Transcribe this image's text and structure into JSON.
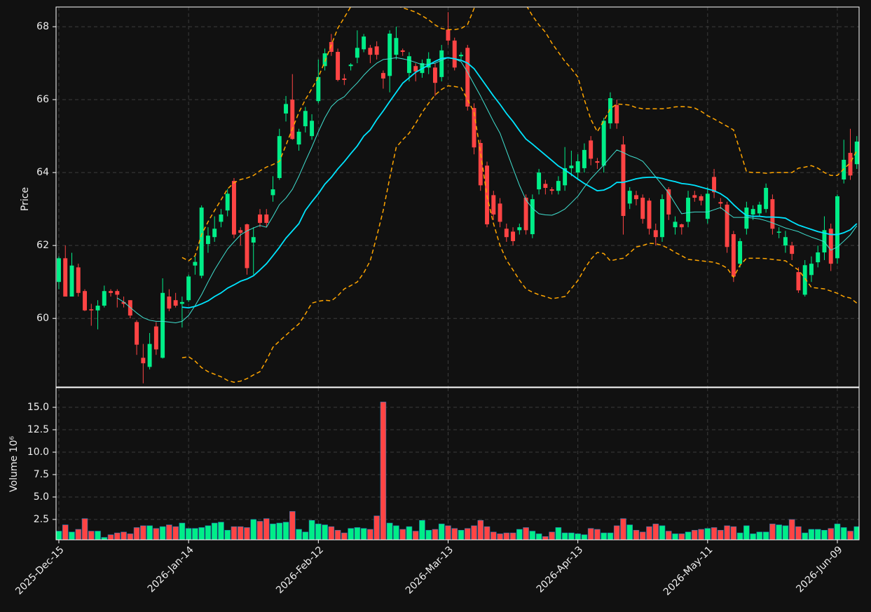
{
  "chart_data": {
    "type": "candlestick",
    "ylabel": "Price",
    "volume_label": "Volume  10⁶",
    "up_color": "#00ee88",
    "down_color": "#ff4444",
    "grid": true,
    "categories": [
      "2025-Dec-15",
      null,
      null,
      null,
      null,
      null,
      null,
      null,
      null,
      null,
      null,
      null,
      null,
      null,
      null,
      null,
      null,
      null,
      null,
      null,
      "2026-Jan-14",
      null,
      null,
      null,
      null,
      null,
      null,
      null,
      null,
      null,
      null,
      null,
      null,
      null,
      null,
      null,
      null,
      null,
      null,
      null,
      "2026-Feb-12",
      null,
      null,
      null,
      null,
      null,
      null,
      null,
      null,
      null,
      null,
      null,
      null,
      null,
      null,
      null,
      null,
      null,
      null,
      null,
      "2026-Mar-13",
      null,
      null,
      null,
      null,
      null,
      null,
      null,
      null,
      null,
      null,
      null,
      null,
      null,
      null,
      null,
      null,
      null,
      null,
      null,
      "2026-Apr-13",
      null,
      null,
      null,
      null,
      null,
      null,
      null,
      null,
      null,
      null,
      null,
      null,
      null,
      null,
      null,
      null,
      null,
      null,
      null,
      "2026-May-11",
      null,
      null,
      null,
      null,
      null,
      null,
      null,
      null,
      null,
      null,
      null,
      null,
      null,
      null,
      null,
      null,
      null,
      null,
      null,
      "2026-Jun-09",
      null,
      null,
      null
    ],
    "open": [
      61.0,
      61.65,
      60.6,
      61.4,
      60.75,
      60.25,
      60.22,
      60.35,
      60.75,
      60.75,
      60.45,
      60.5,
      59.9,
      58.92,
      58.67,
      59.78,
      58.92,
      60.6,
      60.5,
      60.4,
      60.5,
      61.45,
      61.17,
      62.04,
      62.23,
      62.65,
      62.96,
      63.77,
      62.42,
      62.58,
      62.08,
      62.85,
      62.85,
      63.38,
      63.85,
      65.62,
      66.0,
      64.77,
      65.27,
      65.0,
      65.96,
      66.92,
      67.58,
      67.31,
      66.58,
      66.92,
      67.15,
      67.38,
      67.42,
      67.46,
      66.73,
      66.65,
      67.23,
      67.35,
      66.73,
      66.92,
      66.73,
      66.88,
      66.88,
      66.62,
      67.92,
      67.62,
      67.19,
      67.42,
      65.77,
      64.81,
      64.19,
      63.38,
      63.15,
      62.46,
      62.38,
      62.42,
      63.31,
      62.31,
      63.54,
      63.69,
      63.54,
      63.5,
      63.65,
      64.12,
      64.0,
      64.12,
      64.88,
      64.31,
      64.19,
      65.35,
      65.85,
      64.77,
      63.15,
      63.38,
      63.31,
      63.23,
      62.42,
      62.23,
      63.54,
      62.5,
      62.58,
      62.65,
      63.38,
      63.35,
      62.73,
      63.88,
      63.19,
      63.12,
      62.31,
      61.5,
      62.46,
      62.85,
      62.88,
      63.0,
      63.27,
      62.35,
      62.0,
      62.0,
      61.27,
      60.65,
      61.19,
      61.54,
      61.81,
      62.46,
      61.65,
      63.81,
      64.54,
      64.23
    ],
    "high": [
      61.7,
      62.0,
      61.8,
      61.5,
      60.8,
      60.4,
      60.5,
      60.9,
      60.8,
      60.8,
      60.6,
      60.5,
      59.95,
      59.3,
      59.6,
      59.9,
      61.1,
      60.8,
      60.7,
      60.6,
      61.2,
      61.7,
      63.1,
      62.5,
      62.8,
      63.0,
      63.55,
      63.85,
      62.5,
      62.6,
      62.5,
      63.0,
      63.0,
      63.9,
      65.2,
      66.1,
      66.7,
      65.2,
      65.8,
      65.6,
      67.1,
      67.4,
      67.8,
      67.4,
      66.7,
      67.0,
      67.9,
      67.8,
      67.5,
      67.6,
      66.8,
      67.9,
      68.0,
      67.4,
      67.3,
      67.0,
      67.1,
      67.3,
      67.0,
      67.5,
      68.4,
      67.7,
      67.3,
      67.5,
      65.9,
      64.9,
      64.3,
      63.5,
      63.3,
      62.6,
      62.5,
      62.6,
      63.4,
      63.4,
      64.1,
      63.8,
      63.6,
      63.9,
      64.7,
      64.6,
      64.5,
      64.8,
      65.0,
      64.4,
      65.5,
      66.2,
      66.0,
      65.0,
      63.6,
      63.5,
      63.4,
      63.3,
      62.6,
      63.4,
      63.6,
      62.8,
      62.6,
      63.5,
      63.5,
      63.4,
      63.6,
      64.1,
      63.3,
      63.2,
      62.4,
      62.2,
      63.2,
      63.1,
      63.2,
      63.7,
      63.4,
      62.5,
      62.4,
      62.1,
      61.4,
      61.6,
      61.7,
      62.0,
      62.8,
      62.6,
      63.4,
      64.9,
      65.2,
      65.0
    ],
    "low": [
      60.8,
      60.6,
      60.6,
      60.6,
      60.2,
      59.8,
      59.7,
      60.3,
      60.6,
      60.3,
      60.3,
      60.0,
      59.0,
      58.22,
      58.6,
      59.0,
      58.9,
      60.2,
      60.3,
      59.75,
      60.45,
      61.2,
      61.1,
      61.8,
      62.1,
      62.5,
      62.8,
      62.2,
      62.0,
      61.2,
      61.2,
      62.5,
      62.5,
      63.2,
      63.8,
      65.4,
      64.9,
      64.6,
      65.1,
      64.9,
      65.9,
      66.8,
      67.2,
      66.5,
      66.4,
      66.8,
      67.0,
      67.3,
      67.0,
      67.1,
      66.3,
      66.2,
      67.1,
      67.2,
      66.5,
      66.5,
      66.6,
      66.7,
      66.1,
      66.5,
      67.5,
      66.8,
      67.1,
      65.7,
      64.5,
      63.5,
      62.5,
      62.7,
      62.5,
      62.1,
      62.0,
      62.3,
      62.3,
      62.2,
      63.4,
      63.4,
      63.4,
      63.4,
      63.5,
      63.9,
      63.8,
      64.0,
      64.2,
      64.1,
      64.0,
      65.2,
      65.2,
      62.3,
      63.0,
      63.1,
      62.6,
      62.3,
      62.0,
      62.1,
      62.7,
      62.3,
      62.3,
      62.5,
      63.2,
      63.1,
      62.6,
      63.3,
      63.0,
      61.8,
      61.0,
      61.4,
      62.3,
      62.7,
      62.8,
      62.9,
      62.3,
      62.2,
      61.8,
      61.6,
      60.7,
      60.6,
      61.0,
      61.4,
      61.6,
      61.3,
      61.5,
      63.7,
      63.8,
      64.1
    ],
    "close": [
      61.65,
      60.6,
      61.45,
      60.7,
      60.22,
      60.22,
      60.35,
      60.75,
      60.7,
      60.65,
      60.4,
      60.08,
      59.28,
      58.77,
      59.3,
      59.15,
      60.7,
      60.27,
      60.35,
      60.45,
      61.15,
      61.55,
      63.04,
      62.27,
      62.46,
      62.85,
      63.42,
      62.3,
      62.35,
      61.38,
      62.23,
      62.62,
      62.62,
      63.54,
      65.0,
      65.88,
      64.92,
      65.12,
      65.69,
      65.42,
      66.62,
      67.27,
      67.31,
      66.54,
      66.54,
      66.96,
      67.42,
      67.73,
      67.23,
      67.23,
      66.58,
      67.81,
      67.69,
      67.31,
      67.19,
      66.77,
      67.0,
      67.12,
      66.46,
      67.35,
      67.62,
      66.88,
      67.23,
      65.81,
      64.69,
      63.65,
      62.58,
      62.85,
      62.65,
      62.23,
      62.12,
      62.5,
      62.42,
      63.27,
      64.0,
      63.58,
      63.5,
      63.77,
      64.12,
      64.19,
      64.31,
      64.62,
      64.38,
      64.27,
      65.42,
      66.04,
      65.35,
      62.81,
      63.5,
      63.27,
      62.73,
      62.46,
      62.23,
      63.27,
      62.85,
      62.65,
      62.5,
      63.31,
      63.31,
      63.23,
      63.42,
      63.46,
      63.15,
      61.96,
      61.15,
      62.12,
      63.04,
      63.0,
      63.12,
      63.58,
      62.46,
      62.38,
      62.23,
      61.77,
      60.77,
      61.46,
      61.5,
      61.81,
      62.42,
      61.5,
      63.35,
      64.35,
      63.92,
      64.85
    ],
    "volume": [
      1.2,
      1.9,
      1.1,
      1.4,
      2.6,
      1.2,
      1.2,
      0.5,
      0.8,
      1.0,
      1.1,
      0.9,
      1.6,
      1.8,
      1.8,
      1.5,
      1.7,
      1.9,
      1.7,
      2.1,
      1.5,
      1.5,
      1.6,
      1.8,
      2.1,
      2.2,
      1.3,
      1.7,
      1.7,
      1.6,
      2.5,
      2.3,
      2.6,
      2.0,
      2.1,
      2.2,
      3.4,
      1.4,
      1.1,
      2.4,
      2.0,
      1.9,
      1.7,
      1.3,
      1.0,
      1.5,
      1.6,
      1.5,
      1.4,
      2.9,
      15.6,
      2.1,
      1.8,
      1.4,
      1.7,
      1.2,
      2.4,
      1.3,
      1.4,
      2.0,
      1.8,
      1.5,
      1.3,
      1.5,
      1.8,
      2.4,
      1.7,
      1.1,
      0.9,
      1.0,
      1.0,
      1.4,
      1.6,
      1.2,
      0.9,
      0.6,
      1.1,
      1.6,
      1.0,
      1.0,
      0.9,
      0.8,
      1.5,
      1.4,
      1.0,
      1.0,
      1.8,
      2.6,
      1.9,
      1.3,
      1.1,
      1.7,
      2.0,
      1.8,
      1.2,
      0.9,
      0.9,
      1.1,
      1.3,
      1.4,
      1.5,
      1.6,
      1.3,
      1.8,
      1.7,
      1.0,
      1.8,
      0.9,
      1.1,
      1.1,
      2.0,
      1.9,
      1.8,
      2.5,
      1.7,
      1.0,
      1.4,
      1.4,
      1.3,
      1.5,
      2.0,
      1.6,
      1.2,
      1.7
    ],
    "series": [
      {
        "color": "#40e0d0",
        "linewidth": 1,
        "linestyle": "solid",
        "values": [
          null,
          null,
          null,
          null,
          null,
          null,
          null,
          null,
          null,
          60.56,
          60.45,
          60.3,
          60.15,
          60.02,
          59.95,
          59.92,
          59.92,
          59.9,
          59.88,
          59.92,
          60.08,
          60.35,
          60.65,
          61.0,
          61.33,
          61.62,
          61.9,
          62.1,
          62.29,
          62.4,
          62.48,
          62.55,
          62.5,
          62.8,
          63.12,
          63.3,
          63.54,
          63.9,
          64.31,
          64.7,
          65.12,
          65.5,
          65.81,
          65.98,
          66.08,
          66.28,
          66.46,
          66.67,
          66.85,
          67.0,
          67.1,
          67.12,
          67.15,
          67.12,
          67.08,
          67.02,
          66.96,
          66.97,
          67.0,
          67.08,
          67.15,
          67.12,
          67.04,
          66.75,
          66.42,
          66.1,
          65.75,
          65.4,
          65.08,
          64.6,
          64.12,
          63.65,
          63.25,
          63.02,
          62.87,
          62.84,
          62.83,
          62.9,
          63.0,
          63.17,
          63.35,
          63.6,
          63.83,
          64.02,
          64.21,
          64.42,
          64.62,
          64.55,
          64.46,
          64.4,
          64.31,
          64.1,
          63.88,
          63.66,
          63.44,
          63.15,
          62.87,
          62.9,
          62.92,
          62.92,
          62.92,
          62.98,
          63.04,
          62.9,
          62.77,
          62.77,
          62.77,
          62.75,
          62.73,
          62.68,
          62.62,
          62.55,
          62.48,
          62.43,
          62.38,
          62.3,
          62.23,
          62.17,
          62.1,
          61.87,
          61.96,
          62.12,
          62.29,
          62.54
        ]
      },
      {
        "color": "#00e5ff",
        "linewidth": 1.8,
        "linestyle": "solid",
        "values": [
          null,
          null,
          null,
          null,
          null,
          null,
          null,
          null,
          null,
          null,
          null,
          null,
          null,
          null,
          null,
          null,
          null,
          null,
          null,
          60.31,
          60.29,
          60.33,
          60.4,
          60.48,
          60.6,
          60.7,
          60.83,
          60.92,
          61.02,
          61.08,
          61.17,
          61.33,
          61.5,
          61.72,
          61.95,
          62.2,
          62.4,
          62.6,
          62.96,
          63.2,
          63.42,
          63.68,
          63.87,
          64.1,
          64.3,
          64.52,
          64.73,
          65.0,
          65.17,
          65.45,
          65.69,
          65.95,
          66.2,
          66.45,
          66.6,
          66.75,
          66.85,
          66.95,
          67.05,
          67.13,
          67.15,
          67.12,
          67.08,
          67.0,
          66.85,
          66.6,
          66.35,
          66.1,
          65.87,
          65.62,
          65.4,
          65.15,
          64.92,
          64.78,
          64.63,
          64.48,
          64.33,
          64.18,
          64.07,
          63.95,
          63.82,
          63.7,
          63.6,
          63.5,
          63.52,
          63.6,
          63.73,
          63.73,
          63.78,
          63.83,
          63.86,
          63.87,
          63.87,
          63.84,
          63.79,
          63.75,
          63.7,
          63.68,
          63.65,
          63.6,
          63.55,
          63.5,
          63.42,
          63.3,
          63.12,
          62.96,
          62.82,
          62.8,
          62.8,
          62.78,
          62.78,
          62.77,
          62.75,
          62.65,
          62.56,
          62.5,
          62.44,
          62.38,
          62.34,
          62.3,
          62.3,
          62.35,
          62.43,
          62.6
        ]
      },
      {
        "color": "#ffa500",
        "linewidth": 1.5,
        "linestyle": "dashed",
        "values": [
          null,
          null,
          null,
          null,
          null,
          null,
          null,
          null,
          null,
          null,
          null,
          null,
          null,
          null,
          null,
          null,
          null,
          null,
          null,
          61.67,
          61.58,
          61.72,
          62.3,
          62.65,
          62.96,
          63.25,
          63.55,
          63.72,
          63.81,
          63.85,
          63.92,
          64.05,
          64.15,
          64.22,
          64.31,
          64.75,
          65.2,
          65.65,
          66.0,
          66.3,
          66.62,
          67.04,
          67.5,
          67.96,
          68.25,
          68.55,
          68.8,
          68.95,
          69.0,
          68.95,
          68.85,
          68.7,
          68.58,
          68.52,
          68.46,
          68.4,
          68.3,
          68.19,
          68.05,
          67.95,
          67.92,
          67.92,
          67.95,
          68.06,
          68.5,
          68.85,
          69.05,
          69.15,
          69.2,
          69.1,
          68.95,
          68.75,
          68.6,
          68.3,
          68.05,
          67.85,
          67.55,
          67.3,
          67.05,
          66.85,
          66.62,
          66.0,
          65.46,
          65.12,
          65.42,
          65.75,
          65.88,
          65.87,
          65.85,
          65.78,
          65.75,
          65.75,
          65.75,
          65.75,
          65.77,
          65.8,
          65.81,
          65.8,
          65.77,
          65.68,
          65.56,
          65.47,
          65.37,
          65.27,
          65.17,
          64.6,
          64.02,
          64.0,
          64.0,
          63.98,
          64.0,
          64.0,
          64.0,
          64.0,
          64.12,
          64.15,
          64.19,
          64.12,
          64.0,
          63.92,
          63.92,
          64.1,
          64.27,
          64.6
        ]
      },
      {
        "color": "#ffa500",
        "linewidth": 1.5,
        "linestyle": "dashed",
        "values": [
          null,
          null,
          null,
          null,
          null,
          null,
          null,
          null,
          null,
          null,
          null,
          null,
          null,
          null,
          null,
          null,
          null,
          null,
          null,
          58.92,
          58.95,
          58.83,
          58.65,
          58.54,
          58.47,
          58.4,
          58.3,
          58.25,
          58.28,
          58.35,
          58.45,
          58.54,
          58.85,
          59.21,
          59.38,
          59.54,
          59.7,
          59.85,
          60.12,
          60.42,
          60.47,
          60.5,
          60.48,
          60.62,
          60.81,
          60.9,
          61.0,
          61.25,
          61.58,
          62.25,
          62.96,
          63.85,
          64.69,
          64.9,
          65.08,
          65.35,
          65.65,
          65.9,
          66.13,
          66.28,
          66.38,
          66.36,
          66.33,
          66.0,
          65.65,
          64.55,
          63.35,
          62.6,
          62.0,
          61.6,
          61.33,
          61.05,
          60.81,
          60.72,
          60.65,
          60.6,
          60.54,
          60.57,
          60.6,
          60.82,
          61.04,
          61.35,
          61.62,
          61.81,
          61.78,
          61.58,
          61.62,
          61.65,
          61.8,
          61.96,
          62.0,
          62.06,
          62.05,
          62.0,
          61.92,
          61.81,
          61.72,
          61.62,
          61.6,
          61.58,
          61.56,
          61.54,
          61.48,
          61.38,
          61.13,
          61.46,
          61.65,
          61.65,
          61.65,
          61.64,
          61.62,
          61.6,
          61.58,
          61.45,
          61.33,
          61.1,
          60.85,
          60.83,
          60.81,
          60.75,
          60.69,
          60.6,
          60.56,
          60.42
        ]
      }
    ],
    "ylim": [
      58.12,
      68.54
    ],
    "yticks": [
      60,
      62,
      64,
      66,
      68
    ],
    "volume_ylim": [
      0.23,
      17.19
    ],
    "volume_yticks": [
      2.5,
      {
        "value": 5,
        "label": "5.0"
      },
      7.5,
      {
        "value": 10,
        "label": "10.0"
      },
      12.5,
      {
        "value": 15,
        "label": "15.0"
      }
    ]
  }
}
